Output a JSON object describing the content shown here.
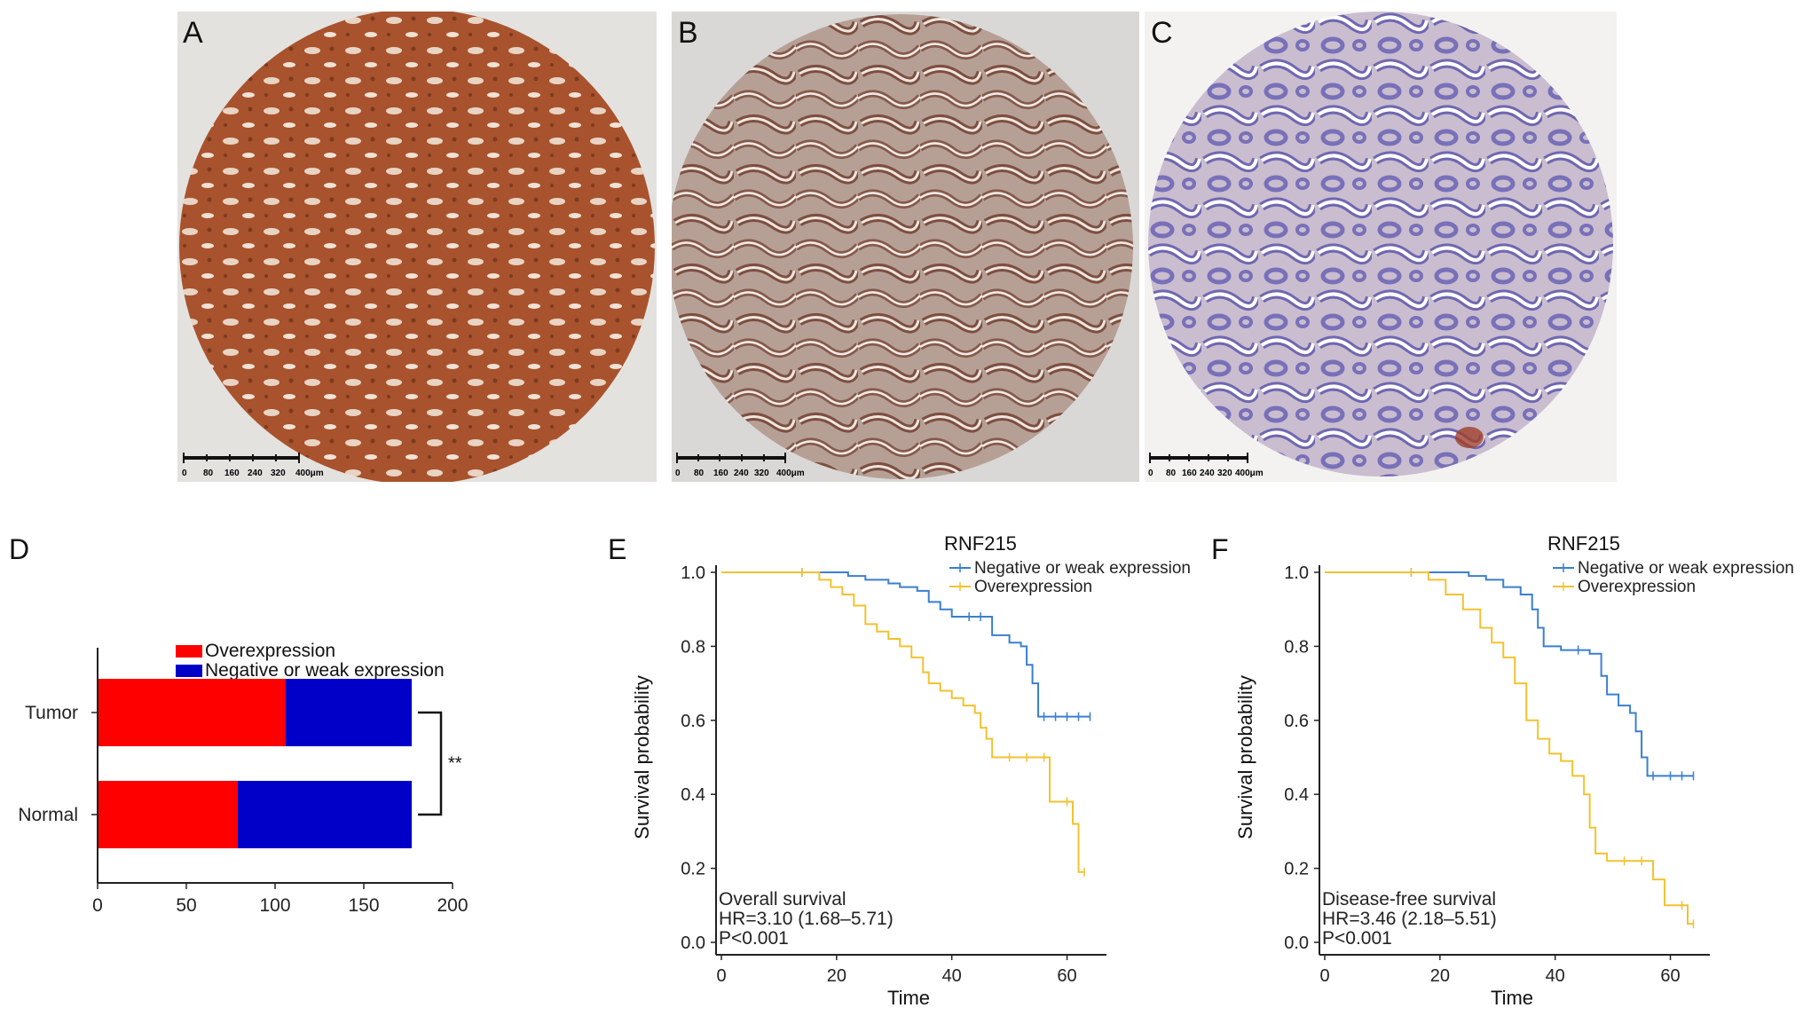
{
  "panels": {
    "A": {
      "letter": "A",
      "scalebar_ticks": [
        "0",
        "80",
        "160",
        "240",
        "320",
        "400μm"
      ],
      "stain": "#a8532d"
    },
    "B": {
      "letter": "B",
      "scalebar_ticks": [
        "0",
        "80",
        "160",
        "240",
        "320",
        "400μm"
      ],
      "stain": "#9a6a55"
    },
    "C": {
      "letter": "C",
      "scalebar_ticks": [
        "0",
        "80",
        "160",
        "240",
        "320",
        "400μm"
      ],
      "stain": "#7870b8"
    },
    "D": {
      "letter": "D"
    },
    "E": {
      "letter": "E"
    },
    "F": {
      "letter": "F"
    }
  },
  "chart_data": [
    {
      "type": "bar",
      "panel": "D",
      "orientation": "horizontal",
      "stacked": true,
      "categories": [
        "Tumor",
        "Normal"
      ],
      "series": [
        {
          "name": "Overexpression",
          "color": "#ff0000",
          "values": [
            106,
            79
          ]
        },
        {
          "name": "Negative or weak expression",
          "color": "#0000c8",
          "values": [
            71,
            98
          ]
        }
      ],
      "xlim": [
        0,
        200
      ],
      "xticks": [
        "0",
        "50",
        "100",
        "150",
        "200"
      ],
      "significance": "**",
      "legend_position": "top"
    },
    {
      "type": "line",
      "panel": "E",
      "legend_title": "RNF215",
      "xlabel": "Time",
      "ylabel": "Survival probability",
      "xlim": [
        0,
        65
      ],
      "ylim": [
        0,
        1
      ],
      "xticks": [
        "0",
        "20",
        "40",
        "60"
      ],
      "yticks": [
        "0.0",
        "0.2",
        "0.4",
        "0.6",
        "0.8",
        "1.0"
      ],
      "annotation": [
        "Overall survival",
        "HR=3.10 (1.68–5.71)",
        "P<0.001"
      ],
      "series": [
        {
          "name": "Negative or weak expression",
          "color": "#3a7fd0",
          "x": [
            0,
            14,
            22,
            25,
            29,
            31,
            34,
            36,
            38,
            40,
            43,
            45,
            47,
            50,
            52,
            53,
            54,
            55,
            56,
            58,
            60,
            62,
            64
          ],
          "y": [
            1.0,
            1.0,
            0.99,
            0.98,
            0.97,
            0.96,
            0.95,
            0.92,
            0.9,
            0.88,
            0.88,
            0.88,
            0.83,
            0.81,
            0.8,
            0.75,
            0.7,
            0.61,
            0.61,
            0.61,
            0.61,
            0.61,
            0.61
          ]
        },
        {
          "name": "Overexpression",
          "color": "#f2c230",
          "x": [
            0,
            14,
            17,
            19,
            21,
            23,
            25,
            27,
            29,
            31,
            33,
            35,
            36,
            38,
            40,
            42,
            44,
            45,
            46,
            47,
            50,
            53,
            56,
            57,
            60,
            61,
            62,
            63
          ],
          "y": [
            1.0,
            1.0,
            0.98,
            0.96,
            0.94,
            0.91,
            0.86,
            0.84,
            0.82,
            0.8,
            0.77,
            0.73,
            0.7,
            0.68,
            0.66,
            0.64,
            0.62,
            0.58,
            0.55,
            0.5,
            0.5,
            0.5,
            0.5,
            0.38,
            0.38,
            0.32,
            0.19,
            0.19
          ]
        }
      ]
    },
    {
      "type": "line",
      "panel": "F",
      "legend_title": "RNF215",
      "xlabel": "Time",
      "ylabel": "Survival probability",
      "xlim": [
        0,
        65
      ],
      "ylim": [
        0,
        1
      ],
      "xticks": [
        "0",
        "20",
        "40",
        "60"
      ],
      "yticks": [
        "0.0",
        "0.2",
        "0.4",
        "0.6",
        "0.8",
        "1.0"
      ],
      "annotation": [
        "Disease-free survival",
        "HR=3.46 (2.18–5.51)",
        "P<0.001"
      ],
      "series": [
        {
          "name": "Negative or weak expression",
          "color": "#3a7fd0",
          "x": [
            0,
            15,
            25,
            28,
            31,
            34,
            36,
            37,
            38,
            41,
            44,
            46,
            48,
            49,
            51,
            53,
            54,
            55,
            56,
            57,
            60,
            62,
            64
          ],
          "y": [
            1.0,
            1.0,
            0.99,
            0.98,
            0.96,
            0.94,
            0.9,
            0.85,
            0.8,
            0.79,
            0.79,
            0.78,
            0.72,
            0.67,
            0.64,
            0.62,
            0.57,
            0.5,
            0.45,
            0.45,
            0.45,
            0.45,
            0.45
          ]
        },
        {
          "name": "Overexpression",
          "color": "#f2c230",
          "x": [
            0,
            15,
            18,
            21,
            24,
            27,
            29,
            31,
            33,
            35,
            37,
            39,
            41,
            43,
            45,
            46,
            47,
            49,
            52,
            55,
            57,
            59,
            62,
            63,
            64
          ],
          "y": [
            1.0,
            1.0,
            0.98,
            0.94,
            0.9,
            0.85,
            0.81,
            0.77,
            0.7,
            0.6,
            0.55,
            0.51,
            0.49,
            0.45,
            0.4,
            0.31,
            0.24,
            0.22,
            0.22,
            0.22,
            0.17,
            0.1,
            0.1,
            0.05,
            0.05
          ]
        }
      ]
    }
  ]
}
